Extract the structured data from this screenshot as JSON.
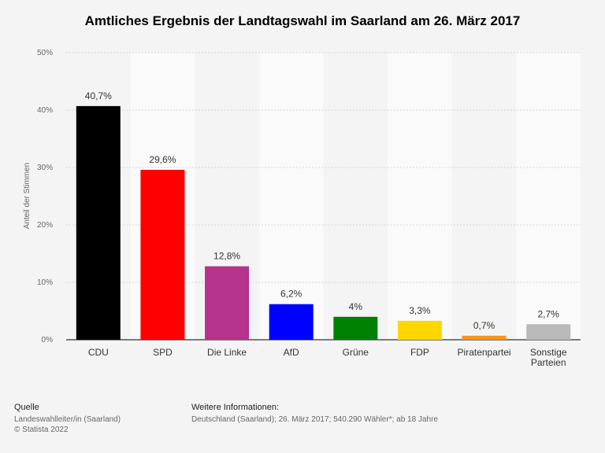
{
  "chart_data": {
    "type": "bar",
    "title": "Amtliches Ergebnis der Landtagswahl im Saarland am 26. März 2017",
    "xlabel": "",
    "ylabel": "Anteil der Stimmen",
    "ylim": [
      0,
      50
    ],
    "yticks": [
      0,
      10,
      20,
      30,
      40,
      50
    ],
    "ytick_labels": [
      "0%",
      "10%",
      "20%",
      "30%",
      "40%",
      "50%"
    ],
    "categories": [
      "CDU",
      "SPD",
      "Die Linke",
      "AfD",
      "Grüne",
      "FDP",
      "Piratenpartei",
      "Sonstige Parteien"
    ],
    "values": [
      40.7,
      29.6,
      12.8,
      6.2,
      4,
      3.3,
      0.7,
      2.7
    ],
    "value_labels": [
      "40,7%",
      "29,6%",
      "12,8%",
      "6,2%",
      "4%",
      "3,3%",
      "0,7%",
      "2,7%"
    ],
    "colors": [
      "#000000",
      "#ff0000",
      "#b5338a",
      "#0000ff",
      "#008000",
      "#ffd700",
      "#f7941d",
      "#b9b9b9"
    ],
    "grid": true
  },
  "footer": {
    "source_header": "Quelle",
    "source_line1": "Landeswahlleiter/in (Saarland)",
    "source_line2": "© Statista 2022",
    "info_header": "Weitere Informationen:",
    "info_line": "Deutschland (Saarland); 26. März 2017; 540.290 Wähler*; ab 18 Jahre"
  }
}
